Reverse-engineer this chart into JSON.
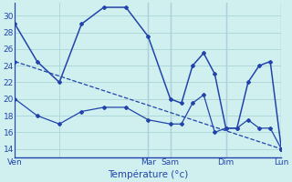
{
  "title": "Température (°c)",
  "background_color": "#d0f0f0",
  "grid_color": "#b0d8d8",
  "line_color": "#2244aa",
  "xlim": [
    0,
    24
  ],
  "ylim": [
    13,
    31.5
  ],
  "yticks": [
    14,
    16,
    18,
    20,
    22,
    24,
    26,
    28,
    30
  ],
  "xtick_positions": [
    0,
    4,
    12,
    14,
    19,
    24
  ],
  "xtick_labels": [
    "Ven",
    "",
    "Mar",
    "Sam",
    "Dim",
    "Lun"
  ],
  "day_lines_x": [
    0,
    12,
    14,
    19,
    24
  ],
  "series_high": {
    "x": [
      0,
      2,
      4,
      6,
      8,
      10,
      12,
      14,
      15,
      16,
      17,
      18,
      19,
      20,
      21,
      22,
      23,
      24
    ],
    "y": [
      29.0,
      24.5,
      22.0,
      29.0,
      31.0,
      31.0,
      27.5,
      20.0,
      19.5,
      24.0,
      25.5,
      23.0,
      16.5,
      16.5,
      22.0,
      24.0,
      24.5,
      14.0
    ]
  },
  "series_low": {
    "x": [
      0,
      2,
      4,
      6,
      8,
      10,
      12,
      14,
      15,
      16,
      17,
      18,
      19,
      20,
      21,
      22,
      23,
      24
    ],
    "y": [
      20.0,
      18.0,
      17.0,
      18.5,
      19.0,
      19.0,
      17.5,
      17.0,
      17.0,
      19.5,
      20.5,
      16.0,
      16.5,
      16.5,
      17.5,
      16.5,
      16.5,
      14.0
    ]
  },
  "series_trend": {
    "x": [
      0,
      24
    ],
    "y": [
      24.5,
      14.0
    ]
  }
}
